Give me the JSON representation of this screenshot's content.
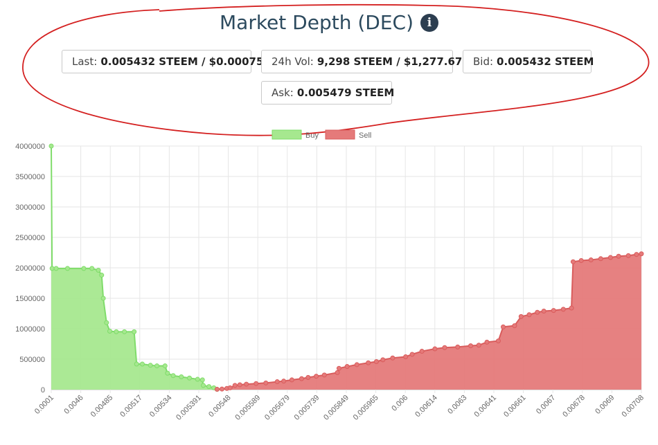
{
  "header": {
    "title": "Market Depth (DEC)",
    "info_icon": "info-circle-icon",
    "stats": {
      "last": {
        "label": "Last:",
        "value": "0.005432 STEEM / $0.00075"
      },
      "vol": {
        "label": "24h Vol:",
        "value": "9,298 STEEM / $1,277.67"
      },
      "bid": {
        "label": "Bid:",
        "value": "0.005432 STEEM"
      },
      "ask": {
        "label": "Ask:",
        "value": "0.005479 STEEM"
      }
    }
  },
  "colors": {
    "title": "#2c4a5e",
    "buy_fill": "#a6e88f",
    "buy_line": "#7fdc6a",
    "sell_fill": "#e57a7a",
    "sell_line": "#d95c5c",
    "annotation": "#d42020"
  },
  "chart_data": {
    "type": "area",
    "title": "",
    "xlabel": "",
    "ylabel": "",
    "ylim": [
      0,
      4000000
    ],
    "yticks": [
      "4000000",
      "3500000",
      "3000000",
      "2500000",
      "2000000",
      "1500000",
      "1000000",
      "500000",
      "0"
    ],
    "xticks": [
      "0.0001",
      "0.0046",
      "0.00485",
      "0.00517",
      "0.00534",
      "0.005391",
      "0.00548",
      "0.005589",
      "0.005679",
      "0.005739",
      "0.005849",
      "0.005965",
      "0.006",
      "0.00614",
      "0.0063",
      "0.00641",
      "0.00661",
      "0.0067",
      "0.00678",
      "0.0069",
      "0.00708"
    ],
    "grid": true,
    "legend_position": "top-center",
    "series": [
      {
        "name": "Buy",
        "points": [
          [
            0,
            4000000
          ],
          [
            0.05,
            1990000
          ],
          [
            0.3,
            1990000
          ],
          [
            1,
            1990000
          ],
          [
            2,
            1990000
          ],
          [
            2.5,
            1990000
          ],
          [
            2.9,
            1960000
          ],
          [
            3.1,
            1880000
          ],
          [
            3.2,
            1500000
          ],
          [
            3.4,
            1100000
          ],
          [
            3.6,
            960000
          ],
          [
            4,
            950000
          ],
          [
            4.5,
            950000
          ],
          [
            5.1,
            950000
          ],
          [
            5.25,
            420000
          ],
          [
            5.6,
            420000
          ],
          [
            6.1,
            400000
          ],
          [
            6.5,
            390000
          ],
          [
            7,
            390000
          ],
          [
            7.15,
            270000
          ],
          [
            7.5,
            230000
          ],
          [
            8,
            210000
          ],
          [
            8.5,
            190000
          ],
          [
            9,
            170000
          ],
          [
            9.3,
            160000
          ],
          [
            9.35,
            70000
          ],
          [
            9.7,
            50000
          ],
          [
            10,
            30000
          ],
          [
            10.2,
            5000
          ]
        ]
      },
      {
        "name": "Sell",
        "points": [
          [
            10.2,
            5000
          ],
          [
            10.5,
            10000
          ],
          [
            10.8,
            20000
          ],
          [
            11,
            30000
          ],
          [
            11.3,
            70000
          ],
          [
            11.6,
            80000
          ],
          [
            12,
            90000
          ],
          [
            12.6,
            100000
          ],
          [
            13.2,
            110000
          ],
          [
            13.9,
            130000
          ],
          [
            14.3,
            140000
          ],
          [
            14.8,
            160000
          ],
          [
            15.4,
            180000
          ],
          [
            15.8,
            200000
          ],
          [
            16.3,
            220000
          ],
          [
            16.8,
            240000
          ],
          [
            17.6,
            280000
          ],
          [
            17.7,
            350000
          ],
          [
            18.2,
            380000
          ],
          [
            18.8,
            410000
          ],
          [
            19.5,
            440000
          ],
          [
            20,
            460000
          ],
          [
            20.4,
            490000
          ],
          [
            21,
            520000
          ],
          [
            21.8,
            540000
          ],
          [
            22.2,
            580000
          ],
          [
            22.8,
            630000
          ],
          [
            23.6,
            670000
          ],
          [
            24.2,
            690000
          ],
          [
            25,
            700000
          ],
          [
            25.8,
            720000
          ],
          [
            26.3,
            730000
          ],
          [
            26.8,
            780000
          ],
          [
            27.5,
            800000
          ],
          [
            27.8,
            1030000
          ],
          [
            28.5,
            1050000
          ],
          [
            28.9,
            1200000
          ],
          [
            29.4,
            1230000
          ],
          [
            29.9,
            1270000
          ],
          [
            30.3,
            1290000
          ],
          [
            30.9,
            1300000
          ],
          [
            31.5,
            1320000
          ],
          [
            32,
            1340000
          ],
          [
            32.1,
            2100000
          ],
          [
            32.6,
            2120000
          ],
          [
            33.2,
            2130000
          ],
          [
            33.8,
            2150000
          ],
          [
            34.4,
            2170000
          ],
          [
            34.9,
            2190000
          ],
          [
            35.5,
            2200000
          ],
          [
            36,
            2220000
          ],
          [
            36.3,
            2230000
          ]
        ]
      }
    ]
  }
}
